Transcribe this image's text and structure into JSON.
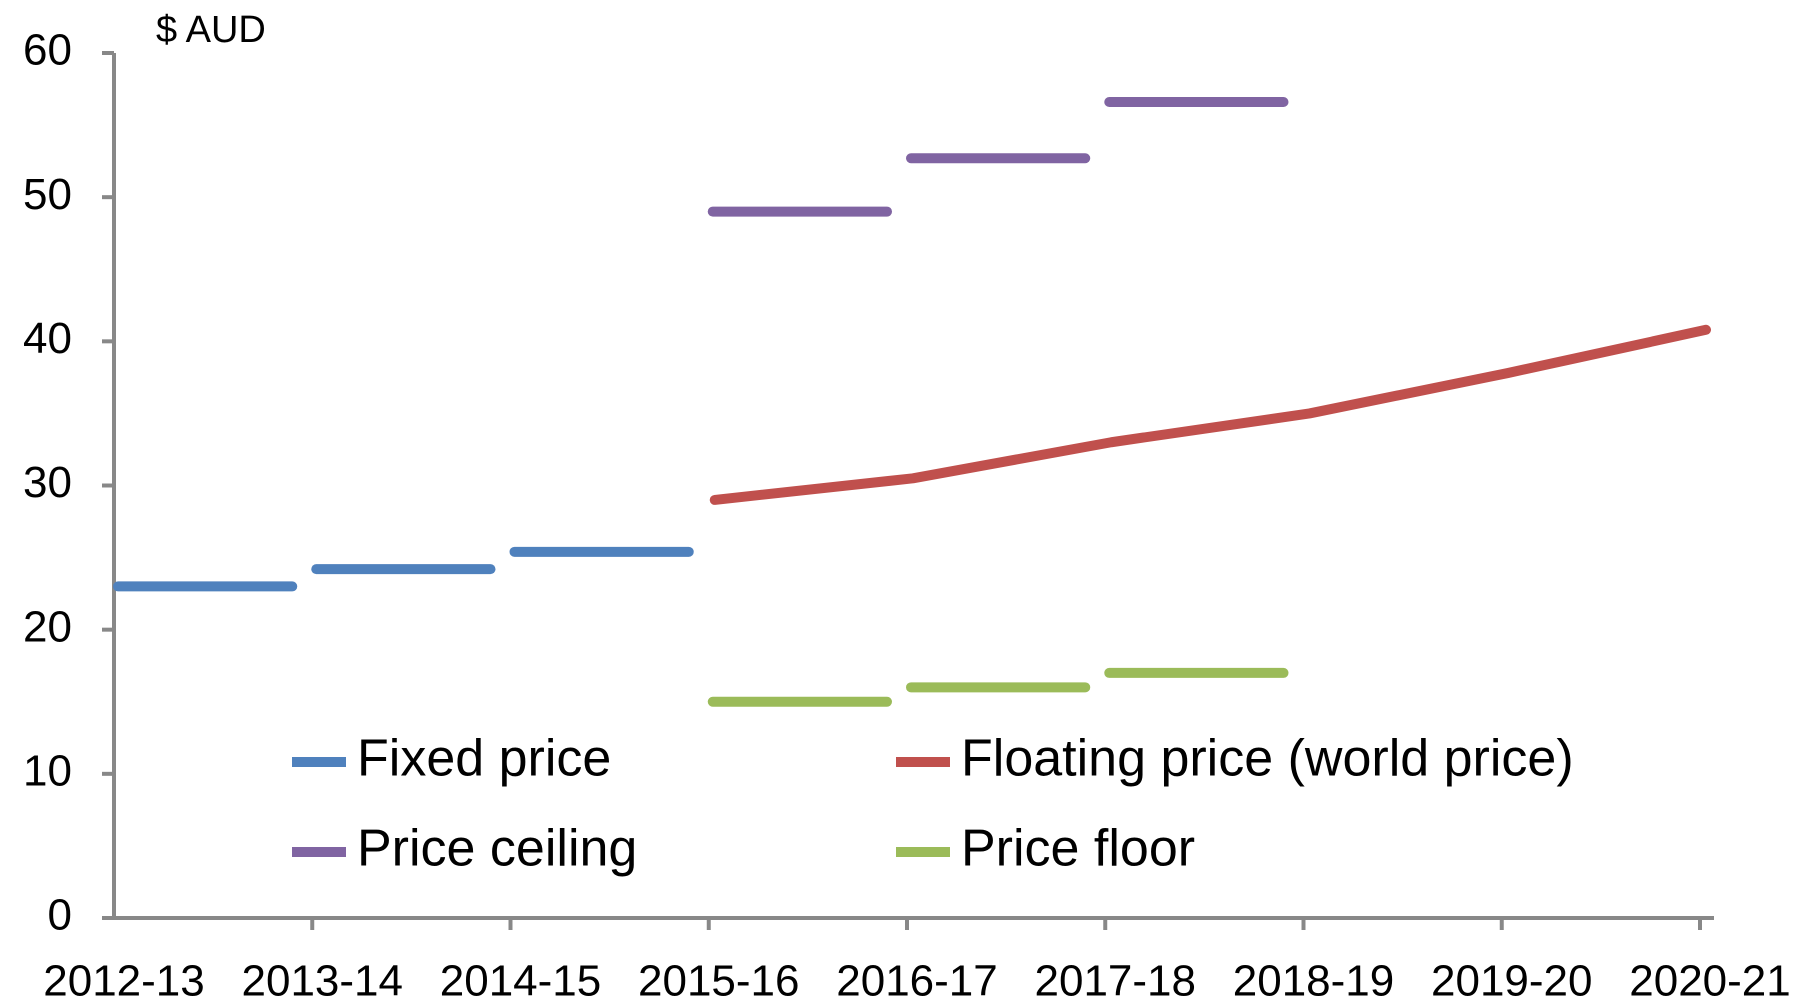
{
  "chart_data": {
    "type": "line",
    "y_axis_label": "$ AUD",
    "categories": [
      "2012-13",
      "2013-14",
      "2014-15",
      "2015-16",
      "2016-17",
      "2017-18",
      "2018-19",
      "2019-20",
      "2020-21"
    ],
    "series": [
      {
        "name": "Fixed price",
        "color": "#4f81bd",
        "step": true,
        "values": [
          23,
          24.2,
          25.4,
          null,
          null,
          null,
          null,
          null,
          null
        ]
      },
      {
        "name": "Floating price (world price)",
        "color": "#c0504d",
        "step": false,
        "values": [
          null,
          null,
          null,
          29,
          30.5,
          33,
          35,
          37.8,
          40.8
        ]
      },
      {
        "name": "Price ceiling",
        "color": "#8064a2",
        "step": true,
        "values": [
          null,
          null,
          null,
          49,
          52.7,
          56.6,
          null,
          null,
          null
        ]
      },
      {
        "name": "Price floor",
        "color": "#9bbb59",
        "step": true,
        "values": [
          null,
          null,
          null,
          15,
          16,
          17,
          null,
          null,
          null
        ]
      }
    ],
    "ylim": [
      0,
      60
    ],
    "yticks": [
      0,
      10,
      20,
      30,
      40,
      50,
      60
    ],
    "grid": false
  }
}
